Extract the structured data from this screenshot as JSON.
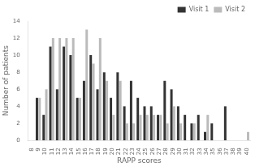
{
  "chart_data": {
    "type": "bar",
    "categories": [
      8,
      9,
      10,
      11,
      12,
      13,
      14,
      15,
      16,
      17,
      18,
      19,
      20,
      21,
      22,
      23,
      24,
      25,
      26,
      27,
      28,
      29,
      30,
      31,
      32,
      33,
      34,
      35,
      36,
      37,
      38,
      39,
      40
    ],
    "series": [
      {
        "name": "Visit 1",
        "color": "#333333",
        "values": [
          0,
          5,
          3,
          11,
          6,
          11,
          10,
          5,
          7,
          10,
          6,
          8,
          5,
          8,
          4,
          7,
          5,
          4,
          4,
          3,
          7,
          6,
          4,
          3,
          2,
          3,
          1,
          2,
          0,
          4,
          0,
          0,
          0
        ]
      },
      {
        "name": "Visit 2",
        "color": "#bbbbbb",
        "values": [
          0,
          5,
          6,
          12,
          12,
          12,
          12,
          5,
          13,
          9,
          12,
          7,
          3,
          7,
          2,
          2,
          3,
          3,
          3,
          3,
          2,
          4,
          2,
          0,
          2,
          0,
          3,
          0,
          0,
          0,
          0,
          0,
          1
        ]
      }
    ],
    "xlabel": "RAPP scores",
    "ylabel": "Number of patients",
    "ylim": [
      0,
      14
    ],
    "yticks": [
      0,
      2,
      4,
      6,
      8,
      10,
      12,
      14
    ],
    "grid": false,
    "legend": "upper right"
  }
}
